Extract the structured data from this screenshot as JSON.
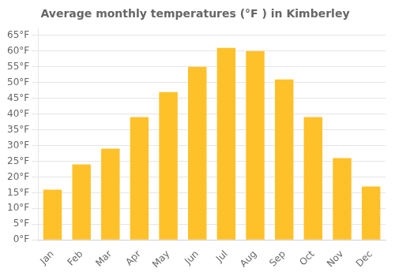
{
  "chart_data": {
    "type": "bar",
    "title": "Average monthly temperatures (°F ) in Kimberley",
    "categories": [
      "Jan",
      "Feb",
      "Mar",
      "Apr",
      "May",
      "Jun",
      "Jul",
      "Aug",
      "Sep",
      "Oct",
      "Nov",
      "Dec"
    ],
    "values": [
      16,
      24,
      29,
      39,
      47,
      55,
      61,
      60,
      51,
      39,
      26,
      17
    ],
    "color": "#FFC12A",
    "ylim": [
      0,
      67
    ],
    "yticks": [
      {
        "value": 0,
        "label": "0°F"
      },
      {
        "value": 5,
        "label": "5°F"
      },
      {
        "value": 10,
        "label": "10°F"
      },
      {
        "value": 15,
        "label": "15°F"
      },
      {
        "value": 20,
        "label": "20°F"
      },
      {
        "value": 25,
        "label": "25°F"
      },
      {
        "value": 30,
        "label": "30°F"
      },
      {
        "value": 35,
        "label": "35°F"
      },
      {
        "value": 40,
        "label": "40°F"
      },
      {
        "value": 45,
        "label": "45°F"
      },
      {
        "value": 50,
        "label": "50°F"
      },
      {
        "value": 55,
        "label": "55°F"
      },
      {
        "value": 60,
        "label": "60°F"
      },
      {
        "value": 65,
        "label": "65°F"
      }
    ],
    "grid": true
  }
}
